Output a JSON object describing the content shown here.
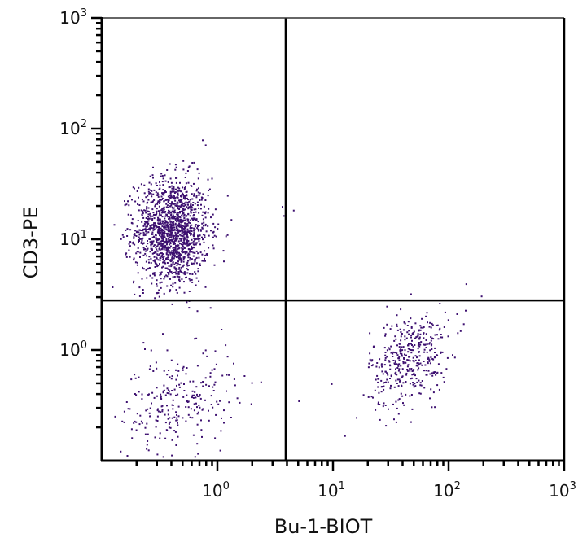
{
  "chart_data": {
    "type": "scatter",
    "subtype": "flow-cytometry-dot-plot-quadrant",
    "title": "",
    "xlabel": "Bu-1-BIOT",
    "ylabel": "CD3-PE",
    "xscale": "log",
    "yscale": "log",
    "xlim": [
      0.1,
      1000
    ],
    "ylim": [
      0.1,
      1000
    ],
    "x_ticks": [
      {
        "base": "10",
        "exp": "0",
        "value": 1
      },
      {
        "base": "10",
        "exp": "1",
        "value": 10
      },
      {
        "base": "10",
        "exp": "2",
        "value": 100
      },
      {
        "base": "10",
        "exp": "3",
        "value": 1000
      }
    ],
    "y_ticks": [
      {
        "base": "10",
        "exp": "0",
        "value": 1
      },
      {
        "base": "10",
        "exp": "1",
        "value": 10
      },
      {
        "base": "10",
        "exp": "2",
        "value": 100
      },
      {
        "base": "10",
        "exp": "3",
        "value": 1000
      }
    ],
    "grid": false,
    "legend": null,
    "gates": {
      "x_threshold": 3.9,
      "y_threshold": 2.8
    },
    "dot_color": "#3d1070",
    "populations": [
      {
        "name": "CD3+ Bu-1- (upper-left)",
        "center_x": 0.4,
        "center_y": 12,
        "spread_log_x": 0.16,
        "spread_log_y": 0.24,
        "count": 1500
      },
      {
        "name": "CD3- Bu-1- (lower-left)",
        "center_x": 0.45,
        "center_y": 0.35,
        "spread_log_x": 0.25,
        "spread_log_y": 0.22,
        "count": 260
      },
      {
        "name": "CD3- Bu-1+ (lower-right)",
        "center_x": 45,
        "center_y": 0.85,
        "spread_log_x": 0.17,
        "spread_log_y": 0.2,
        "count": 420
      }
    ],
    "outliers": [
      {
        "x": 3.6,
        "y": 20
      },
      {
        "x": 4.5,
        "y": 18.5
      },
      {
        "x": 3.7,
        "y": 16.5
      },
      {
        "x": 0.78,
        "y": 72
      },
      {
        "x": 0.62,
        "y": 50
      },
      {
        "x": 140,
        "y": 4
      },
      {
        "x": 190,
        "y": 3.1
      },
      {
        "x": 9.6,
        "y": 0.5
      },
      {
        "x": 5.0,
        "y": 0.35
      },
      {
        "x": 12.5,
        "y": 0.17
      }
    ]
  }
}
